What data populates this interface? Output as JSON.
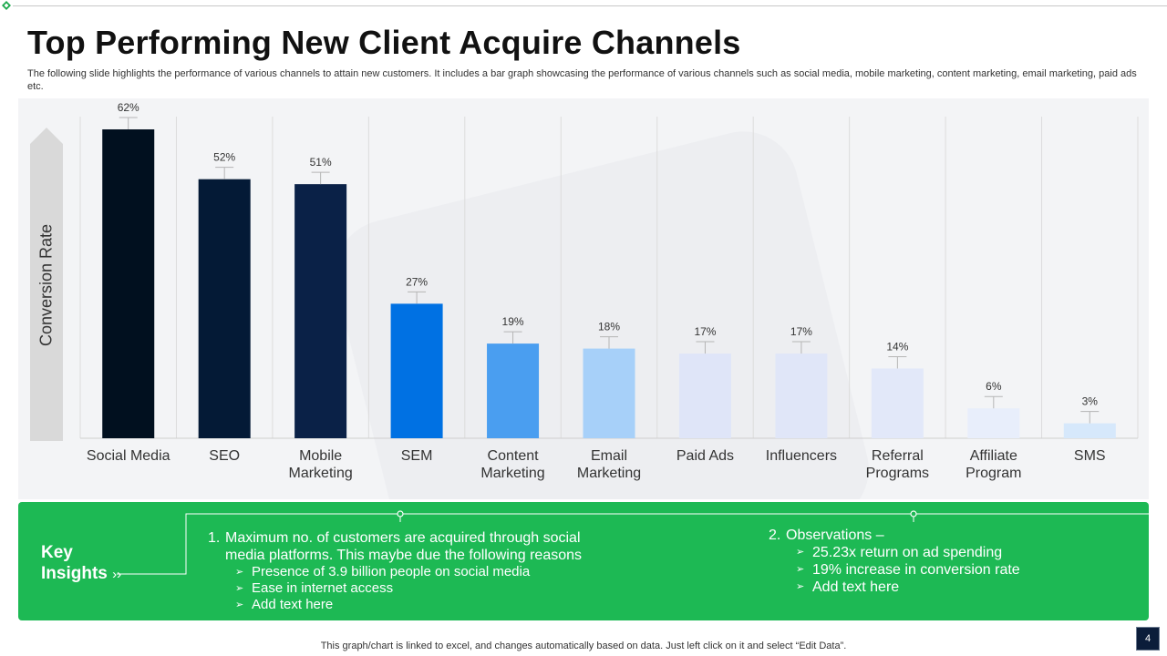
{
  "slide": {
    "title": "Top Performing New Client Acquire Channels",
    "subtitle": "The following slide highlights the performance of various channels to attain new customers. It includes a bar graph showcasing the performance of various channels such as social media, mobile marketing, content marketing, email marketing, paid ads etc.",
    "page_number": "4",
    "footer": "This graph/chart is linked to excel,  and changes automatically based on data. Just left click on it and select “Edit Data”."
  },
  "chart_data": {
    "type": "bar",
    "title": "",
    "xlabel": "",
    "ylabel": "Conversion Rate",
    "ylim": [
      0,
      65
    ],
    "grid": "vertical",
    "categories": [
      [
        "Social Media"
      ],
      [
        "SEO"
      ],
      [
        "Mobile",
        "Marketing"
      ],
      [
        "SEM"
      ],
      [
        "Content",
        "Marketing"
      ],
      [
        "Email",
        "Marketing"
      ],
      [
        "Paid Ads"
      ],
      [
        "Influencers"
      ],
      [
        "Referral",
        "Programs"
      ],
      [
        "Affiliate",
        "Program"
      ],
      [
        "SMS"
      ]
    ],
    "values": [
      62,
      52,
      51,
      27,
      19,
      18,
      17,
      17,
      14,
      6,
      3
    ],
    "data_labels": [
      "62%",
      "52%",
      "51%",
      "27%",
      "19%",
      "18%",
      "17%",
      "17%",
      "14%",
      "6%",
      "3%"
    ],
    "colors": [
      "#01101f",
      "#041a36",
      "#0a2147",
      "#0071e3",
      "#4a9ef0",
      "#a7d0f9",
      "#dfe5f8",
      "#e0e6f8",
      "#e2e8f9",
      "#e8eefb",
      "#d6e8fb"
    ]
  },
  "insights": {
    "heading_line1": "Key",
    "heading_line2": "Insights",
    "heading_arrows": "››",
    "col1": {
      "number": "1.",
      "text_line1": "Maximum  no.  of customers are acquired through  social",
      "text_line2": "media platforms. This maybe due the following reasons",
      "bullets": [
        "Presence of 3.9 billion people on social media",
        "Ease in internet access",
        "Add text here"
      ]
    },
    "col2": {
      "number": "2.",
      "text": "Observations –",
      "bullets": [
        "25.23x return  on ad spending",
        "19% increase in conversion rate",
        "Add text here"
      ]
    },
    "bullet_glyph": "➢"
  },
  "colors": {
    "insights_bg": "#1db954",
    "accent_green": "#1aa84b"
  }
}
